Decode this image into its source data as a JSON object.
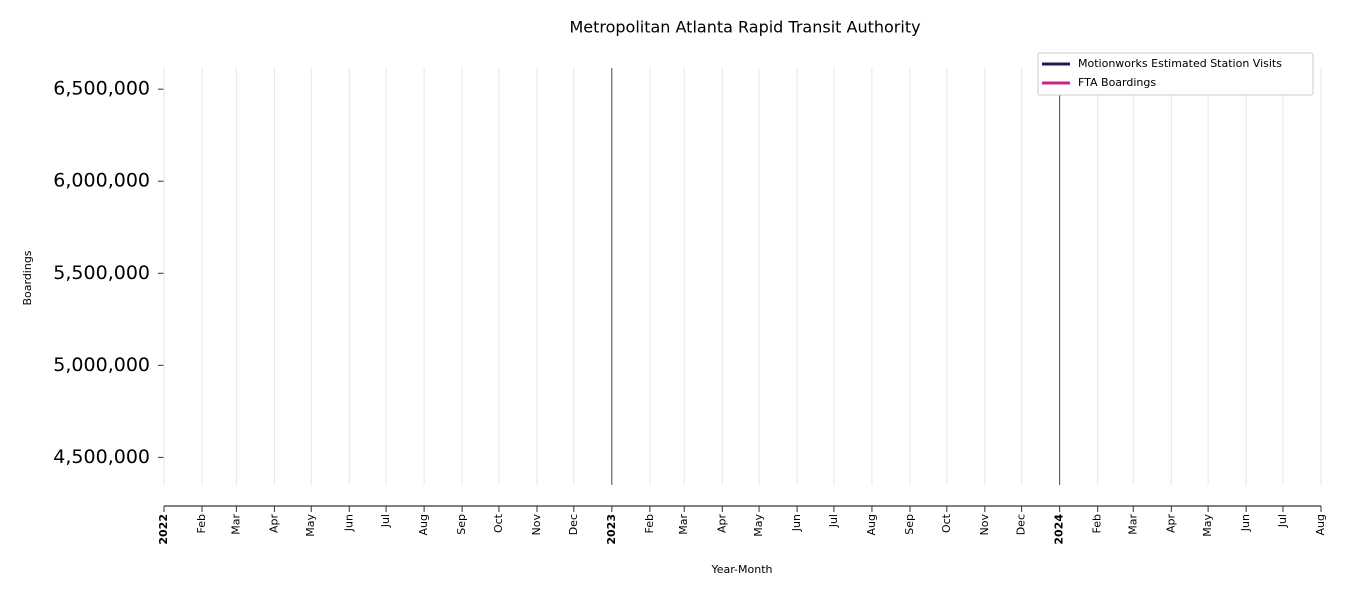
{
  "chart_data": {
    "type": "line",
    "title": "Metropolitan Atlanta Rapid Transit Authority",
    "xlabel": "Year-Month",
    "ylabel": "Boardings",
    "series": [
      {
        "name": "Motionworks Estimated Station Visits",
        "color": "#1f1f4f"
      },
      {
        "name": "FTA Boardings",
        "color": "#d11f8a"
      }
    ],
    "xlim": [
      "2022-01",
      "2024-08"
    ],
    "xticks": [
      {
        "value": "2022-01",
        "label": "2022"
      },
      {
        "value": "2022-02",
        "label": "Feb"
      },
      {
        "value": "2022-03",
        "label": "Mar"
      },
      {
        "value": "2022-04",
        "label": "Apr"
      },
      {
        "value": "2022-05",
        "label": "May"
      },
      {
        "value": "2022-06",
        "label": "Jun"
      },
      {
        "value": "2022-07",
        "label": "Jul"
      },
      {
        "value": "2022-08",
        "label": "Aug"
      },
      {
        "value": "2022-09",
        "label": "Sep"
      },
      {
        "value": "2022-10",
        "label": "Oct"
      },
      {
        "value": "2022-11",
        "label": "Nov"
      },
      {
        "value": "2022-12",
        "label": "Dec"
      },
      {
        "value": "2023-01",
        "label": "2023"
      },
      {
        "value": "2023-02",
        "label": "Feb"
      },
      {
        "value": "2023-03",
        "label": "Mar"
      },
      {
        "value": "2023-04",
        "label": "Apr"
      },
      {
        "value": "2023-05",
        "label": "May"
      },
      {
        "value": "2023-06",
        "label": "Jun"
      },
      {
        "value": "2023-07",
        "label": "Jul"
      },
      {
        "value": "2023-08",
        "label": "Aug"
      },
      {
        "value": "2023-09",
        "label": "Sep"
      },
      {
        "value": "2023-10",
        "label": "Oct"
      },
      {
        "value": "2023-11",
        "label": "Nov"
      },
      {
        "value": "2023-12",
        "label": "Dec"
      },
      {
        "value": "2024-01",
        "label": "2024"
      },
      {
        "value": "2024-02",
        "label": "Feb"
      },
      {
        "value": "2024-03",
        "label": "Mar"
      },
      {
        "value": "2024-04",
        "label": "Apr"
      },
      {
        "value": "2024-05",
        "label": "May"
      },
      {
        "value": "2024-06",
        "label": "Jun"
      },
      {
        "value": "2024-07",
        "label": "Jul"
      },
      {
        "value": "2024-08",
        "label": "Aug"
      }
    ],
    "ylim": [
      4350000,
      6615000
    ],
    "yticks": [
      {
        "value": 4500000,
        "label": "4,500,000"
      },
      {
        "value": 5000000,
        "label": "5,000,000"
      },
      {
        "value": 5500000,
        "label": "5,500,000"
      },
      {
        "value": 6000000,
        "label": "6,000,000"
      },
      {
        "value": 6500000,
        "label": "6,500,000"
      }
    ],
    "grid": true,
    "legend": "upper right"
  }
}
